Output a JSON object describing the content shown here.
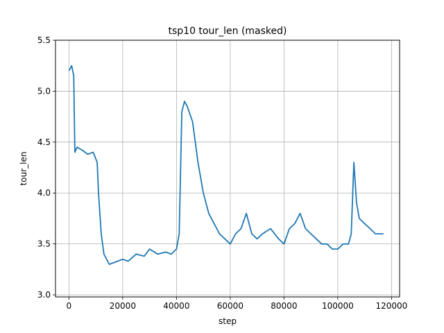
{
  "chart_data": {
    "type": "line",
    "title": "tsp10 tour_len (masked)",
    "xlabel": "step",
    "ylabel": "tour_len",
    "xlim": [
      -5000,
      123000
    ],
    "ylim": [
      2.98,
      5.5
    ],
    "xticks": [
      0,
      20000,
      40000,
      60000,
      80000,
      100000,
      120000
    ],
    "yticks": [
      3.0,
      3.5,
      4.0,
      4.5,
      5.0,
      5.5
    ],
    "xtick_labels": [
      "0",
      "20000",
      "40000",
      "60000",
      "80000",
      "100000",
      "120000"
    ],
    "ytick_labels": [
      "3.0",
      "3.5",
      "4.0",
      "4.5",
      "5.0",
      "5.5"
    ],
    "grid": true,
    "series": [
      {
        "color": "#1f77b4",
        "x": [
          0,
          1000,
          1800,
          2200,
          3000,
          5000,
          7000,
          9000,
          10500,
          11000,
          12000,
          13000,
          15000,
          17000,
          20000,
          22000,
          25000,
          28000,
          30000,
          33000,
          36000,
          38000,
          40000,
          41000,
          42000,
          43000,
          44000,
          46000,
          47000,
          48000,
          50000,
          52000,
          54000,
          56000,
          58000,
          60000,
          62000,
          64000,
          66000,
          68000,
          70000,
          72000,
          75000,
          78000,
          80000,
          82000,
          84000,
          86000,
          88000,
          90000,
          92000,
          94000,
          96000,
          98000,
          100000,
          102000,
          104000,
          105000,
          106000,
          107000,
          108000,
          110000,
          112000,
          114000,
          116000,
          117000
        ],
        "y": [
          5.2,
          5.25,
          5.15,
          4.4,
          4.45,
          4.42,
          4.38,
          4.4,
          4.3,
          4.0,
          3.6,
          3.4,
          3.3,
          3.32,
          3.35,
          3.33,
          3.4,
          3.38,
          3.45,
          3.4,
          3.42,
          3.4,
          3.45,
          3.6,
          4.8,
          4.9,
          4.85,
          4.7,
          4.5,
          4.3,
          4.0,
          3.8,
          3.7,
          3.6,
          3.55,
          3.5,
          3.6,
          3.65,
          3.8,
          3.6,
          3.55,
          3.6,
          3.65,
          3.55,
          3.5,
          3.65,
          3.7,
          3.8,
          3.65,
          3.6,
          3.55,
          3.5,
          3.5,
          3.45,
          3.45,
          3.5,
          3.5,
          3.6,
          4.3,
          3.9,
          3.75,
          3.7,
          3.65,
          3.6,
          3.6,
          3.6
        ]
      }
    ]
  }
}
